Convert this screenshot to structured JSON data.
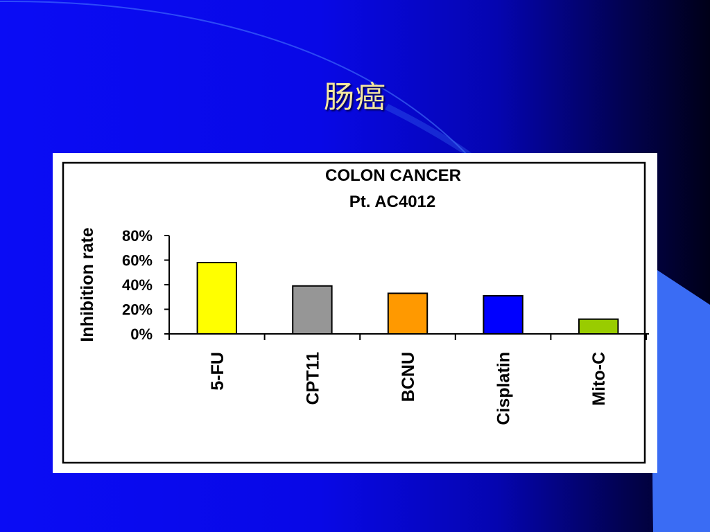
{
  "slide": {
    "title": "肠癌",
    "background_colors": {
      "left": "#0a0cf5",
      "right": "#000018",
      "accent_shape": "#3a6cf4"
    }
  },
  "chart_data": {
    "type": "bar",
    "title": "COLON CANCER",
    "subtitle": "Pt. AC4012",
    "ylabel": "Inhibition rate",
    "xlabel": "",
    "categories": [
      "5-FU",
      "CPT11",
      "BCNU",
      "Cisplatin",
      "Mito-C"
    ],
    "values": [
      0.58,
      0.39,
      0.33,
      0.31,
      0.12
    ],
    "colors": [
      "#ffff00",
      "#969696",
      "#ff9900",
      "#0000ff",
      "#99cc00"
    ],
    "ylim": [
      0,
      0.8
    ],
    "yticks": [
      0,
      0.2,
      0.4,
      0.6,
      0.8
    ],
    "ytick_labels": [
      "0%",
      "20%",
      "40%",
      "60%",
      "80%"
    ],
    "grid": false,
    "legend": "none"
  }
}
